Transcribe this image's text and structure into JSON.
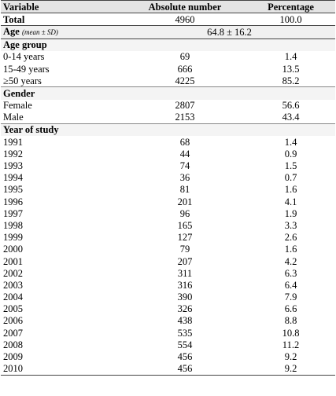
{
  "header": [
    "Variable",
    "Absolute number",
    "Percentage"
  ],
  "total": [
    "Total",
    "4960",
    "100.0"
  ],
  "age": {
    "label": "Age",
    "note": "(mean ± SD)",
    "value": "64.8 ± 16.2"
  },
  "sections": [
    {
      "title": "Age group",
      "rows": [
        [
          "0-14 years",
          "69",
          "1.4"
        ],
        [
          "15-49 years",
          "666",
          "13.5"
        ],
        [
          "≥50 years",
          "4225",
          "85.2"
        ]
      ]
    },
    {
      "title": "Gender",
      "rows": [
        [
          "Female",
          "2807",
          "56.6"
        ],
        [
          "Male",
          "2153",
          "43.4"
        ]
      ]
    },
    {
      "title": "Year of study",
      "rows": [
        [
          "1991",
          "68",
          "1.4"
        ],
        [
          "1992",
          "44",
          "0.9"
        ],
        [
          "1993",
          "74",
          "1.5"
        ],
        [
          "1994",
          "36",
          "0.7"
        ],
        [
          "1995",
          "81",
          "1.6"
        ],
        [
          "1996",
          "201",
          "4.1"
        ],
        [
          "1997",
          "96",
          "1.9"
        ],
        [
          "1998",
          "165",
          "3.3"
        ],
        [
          "1999",
          "127",
          "2.6"
        ],
        [
          "2000",
          "79",
          "1.6"
        ],
        [
          "2001",
          "207",
          "4.2"
        ],
        [
          "2002",
          "311",
          "6.3"
        ],
        [
          "2003",
          "316",
          "6.4"
        ],
        [
          "2004",
          "390",
          "7.9"
        ],
        [
          "2005",
          "326",
          "6.6"
        ],
        [
          "2006",
          "438",
          "8.8"
        ],
        [
          "2007",
          "535",
          "10.8"
        ],
        [
          "2008",
          "554",
          "11.2"
        ],
        [
          "2009",
          "456",
          "9.2"
        ],
        [
          "2010",
          "456",
          "9.2"
        ]
      ]
    }
  ]
}
